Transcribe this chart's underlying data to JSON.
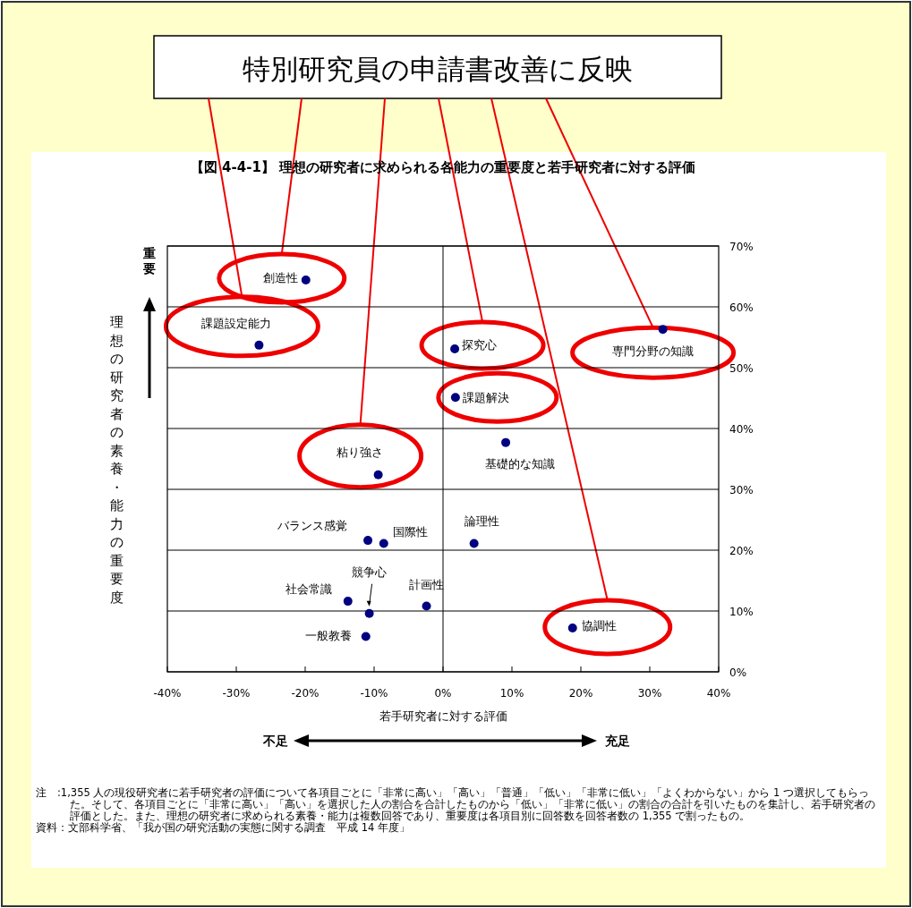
{
  "chart_data": {
    "type": "scatter",
    "title": "【図 4-4-1】 理想の研究者に求められる各能力の重要度と若手研究者に対する評価",
    "xlabel": "若手研究者に対する評価",
    "ylabel": "理想の研究者の素養・能力の重要度",
    "x": [
      -19.9,
      -26.7,
      1.7,
      31.9,
      1.8,
      9.1,
      -9.4,
      -10.9,
      -8.6,
      4.5,
      -13.8,
      -10.7,
      -2.4,
      -11.2,
      18.8
    ],
    "values": [
      64.4,
      53.7,
      53.1,
      56.3,
      45.1,
      37.7,
      32.4,
      21.6,
      21.1,
      21.1,
      11.6,
      9.6,
      10.8,
      5.8,
      7.2
    ],
    "color": "#000080",
    "marker": "circle",
    "xlim": [
      -40,
      40
    ],
    "xticks": [
      {
        "value": -40,
        "label": "-40%"
      },
      {
        "value": -30,
        "label": "-30%"
      },
      {
        "value": -20,
        "label": "-20%"
      },
      {
        "value": -10,
        "label": "-10%"
      },
      {
        "value": 0,
        "label": "0%"
      },
      {
        "value": 10,
        "label": "10%"
      },
      {
        "value": 20,
        "label": "20%"
      },
      {
        "value": 30,
        "label": "30%"
      },
      {
        "value": 40,
        "label": "40%"
      }
    ],
    "ylim": [
      0,
      70
    ],
    "yticks": [
      {
        "value": 0,
        "label": "0%"
      },
      {
        "value": 10,
        "label": "10%"
      },
      {
        "value": 20,
        "label": "20%"
      },
      {
        "value": 30,
        "label": "30%"
      },
      {
        "value": 40,
        "label": "40%"
      },
      {
        "value": 50,
        "label": "50%"
      },
      {
        "value": 60,
        "label": "60%"
      },
      {
        "value": 70,
        "label": "70%"
      }
    ],
    "grid": "y",
    "ref_lines": [
      {
        "axis": "x",
        "value": 0,
        "label": null,
        "color": "#000000"
      }
    ],
    "annotations": [
      {
        "text": "創造性",
        "x": -19.9,
        "y": 64.4
      },
      {
        "text": "課題設定能力",
        "x": -26.7,
        "y": 53.7
      },
      {
        "text": "探究心",
        "x": 1.7,
        "y": 53.1
      },
      {
        "text": "専門分野の知識",
        "x": 31.9,
        "y": 56.3
      },
      {
        "text": "課題解決",
        "x": 1.8,
        "y": 45.1
      },
      {
        "text": "基礎的な知識",
        "x": 9.1,
        "y": 37.7
      },
      {
        "text": "粘り強さ",
        "x": -9.4,
        "y": 32.4
      },
      {
        "text": "バランス感覚",
        "x": -10.9,
        "y": 21.6
      },
      {
        "text": "国際性",
        "x": -8.6,
        "y": 21.1
      },
      {
        "text": "論理性",
        "x": 4.5,
        "y": 21.1
      },
      {
        "text": "社会常識",
        "x": -13.8,
        "y": 11.6
      },
      {
        "text": "競争心",
        "x": -10.7,
        "y": 9.6
      },
      {
        "text": "計画性",
        "x": -2.4,
        "y": 10.8
      },
      {
        "text": "一般教養",
        "x": -11.2,
        "y": 5.8
      },
      {
        "text": "協調性",
        "x": 18.8,
        "y": 7.2
      },
      "特別研究員の申請書改善に反映",
      "重要",
      "不足",
      "充足",
      "注　:1,355 人の現役研究者に若手研究者の評価について各項目ごとに「非常に高い」「高い」「普通」「低い」「非常に低い」「よくわからない」から 1 つ選択してもらった。そして、各項目ごとに「非常に高い」「高い」を選択した人の割合を合計したものから「低い」「非常に低い」の割合の合計を引いたものを集計し、若手研究者の評価とした。また、理想の研究者に求められる素養・能力は複数回答であり、重要度は各項目別に回答数を回答者数の 1,355 で割ったもの。",
      "資料：文部科学省、「我が国の研究活動の実態に関する調査　平成 14 年度」"
    ]
  }
}
